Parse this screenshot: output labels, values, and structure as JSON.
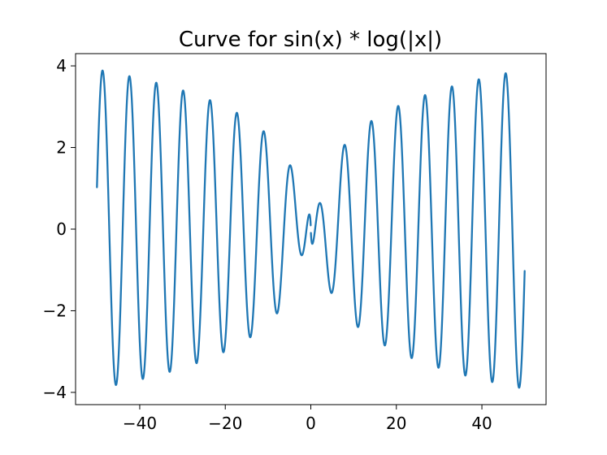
{
  "chart_data": {
    "type": "line",
    "title": "Curve for sin(x) * log(|x|)",
    "xlabel": "",
    "ylabel": "",
    "function": "sin(x) * log(|x|)",
    "x_range": [
      -50,
      50
    ],
    "xlim": [
      -55,
      55
    ],
    "ylim": [
      -4.3,
      4.3
    ],
    "xticks": [
      -40,
      -20,
      0,
      20,
      40
    ],
    "xtick_labels": [
      "−40",
      "−20",
      "0",
      "20",
      "40"
    ],
    "yticks": [
      -4,
      -2,
      0,
      2,
      4
    ],
    "ytick_labels": [
      "−4",
      "−2",
      "0",
      "2",
      "4"
    ],
    "grid": false,
    "legend": "none",
    "series": [
      {
        "color": "#1f77b4"
      }
    ]
  }
}
